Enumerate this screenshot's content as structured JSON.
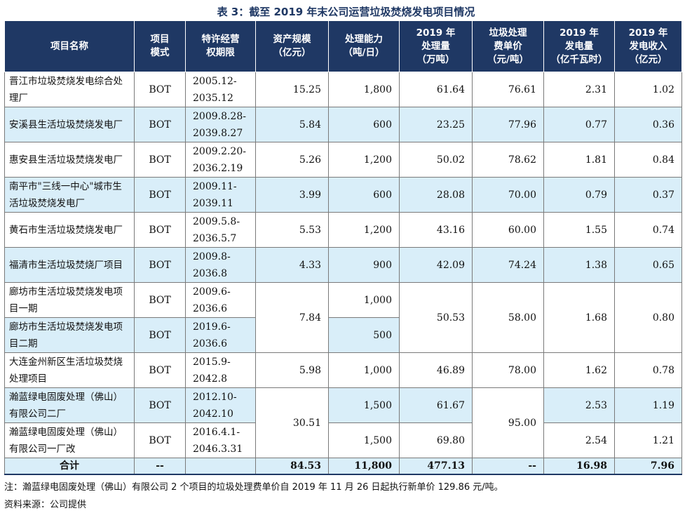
{
  "title": "表 3：截至 2019 年末公司运营垃圾焚烧发电项目情况",
  "headers": [
    "项目名称",
    "项目\n模式",
    "特许经营\n权期限",
    "资产规模\n（亿元）",
    "处理能力\n（吨/日）",
    "2019 年\n处理量\n（万吨）",
    "垃圾处理\n费单价\n（元/吨）",
    "2019 年\n发电量\n（亿千瓦时）",
    "2019 年\n发电收入\n（亿元）"
  ],
  "rows": [
    {
      "name": "晋江市垃圾焚烧发电综合处理厂",
      "mode": "BOT",
      "period": "2005.12-\n2035.12",
      "assets": "15.25",
      "capacity": "1,800",
      "volume": "61.64",
      "fee": "76.61",
      "power": "2.31",
      "revenue": "1.02"
    },
    {
      "name": "安溪县生活垃圾焚烧发电厂",
      "mode": "BOT",
      "period": "2009.8.28-\n2039.8.27",
      "assets": "5.84",
      "capacity": "600",
      "volume": "23.25",
      "fee": "77.96",
      "power": "0.77",
      "revenue": "0.36"
    },
    {
      "name": "惠安县生活垃圾焚烧发电厂",
      "mode": "BOT",
      "period": "2009.2.20-\n2036.2.19",
      "assets": "5.26",
      "capacity": "1,200",
      "volume": "50.02",
      "fee": "78.62",
      "power": "1.81",
      "revenue": "0.84"
    },
    {
      "name": "南平市\"三线一中心\"城市生活垃圾焚烧发电厂",
      "mode": "BOT",
      "period": "2009.11-\n2039.11",
      "assets": "3.99",
      "capacity": "600",
      "volume": "28.08",
      "fee": "70.00",
      "power": "0.79",
      "revenue": "0.37"
    },
    {
      "name": "黄石市生活垃圾焚烧发电厂",
      "mode": "BOT",
      "period": "2009.5.8-\n2036.5.7",
      "assets": "5.53",
      "capacity": "1,200",
      "volume": "43.16",
      "fee": "60.00",
      "power": "1.55",
      "revenue": "0.74"
    },
    {
      "name": "福清市生活垃圾焚烧厂项目",
      "mode": "BOT",
      "period": "2009.8-\n2036.8",
      "assets": "4.33",
      "capacity": "900",
      "volume": "42.09",
      "fee": "74.24",
      "power": "1.38",
      "revenue": "0.65"
    },
    {
      "name": "廊坊市生活垃圾焚烧发电项目一期",
      "mode": "BOT",
      "period": "2009.6-\n2036.6",
      "assets": "7.84",
      "capacity": "1,000",
      "volume": "50.53",
      "fee": "58.00",
      "power": "1.68",
      "revenue": "0.80"
    },
    {
      "name": "廊坊市生活垃圾焚烧发电项目二期",
      "mode": "BOT",
      "period": "2019.6-\n2036.6",
      "capacity": "500"
    },
    {
      "name": "大连金州新区生活垃圾焚烧处理项目",
      "mode": "BOT",
      "period": "2015.9-\n2042.8",
      "assets": "5.98",
      "capacity": "1,000",
      "volume": "46.89",
      "fee": "78.00",
      "power": "1.62",
      "revenue": "0.78"
    },
    {
      "name": "瀚蓝绿电固废处理（佛山）有限公司二厂",
      "mode": "BOT",
      "period": "2012.10-\n2042.10",
      "assets": "30.51",
      "capacity": "1,500",
      "volume": "61.67",
      "fee": "95.00",
      "power": "2.53",
      "revenue": "1.19"
    },
    {
      "name": "瀚蓝绿电固废处理（佛山）有限公司一厂改",
      "mode": "BOT",
      "period": "2016.4.1-\n2046.3.31",
      "capacity": "1,500",
      "volume": "69.80",
      "power": "2.54",
      "revenue": "1.21"
    }
  ],
  "total": {
    "label": "合计",
    "mode": "--",
    "period": "",
    "assets": "84.53",
    "capacity": "11,800",
    "volume": "477.13",
    "fee": "--",
    "power": "16.98",
    "revenue": "7.96"
  },
  "note": "注：瀚蓝绿电固废处理（佛山）有限公司 2 个项目的垃圾处理费单价自 2019 年 11 月 26 日起执行新单价 129.86 元/吨。",
  "source": "资料来源：公司提供",
  "colors": {
    "header_bg": "#1f3864",
    "alt_row_bg": "#d9eef9",
    "title": "#1f3864"
  }
}
